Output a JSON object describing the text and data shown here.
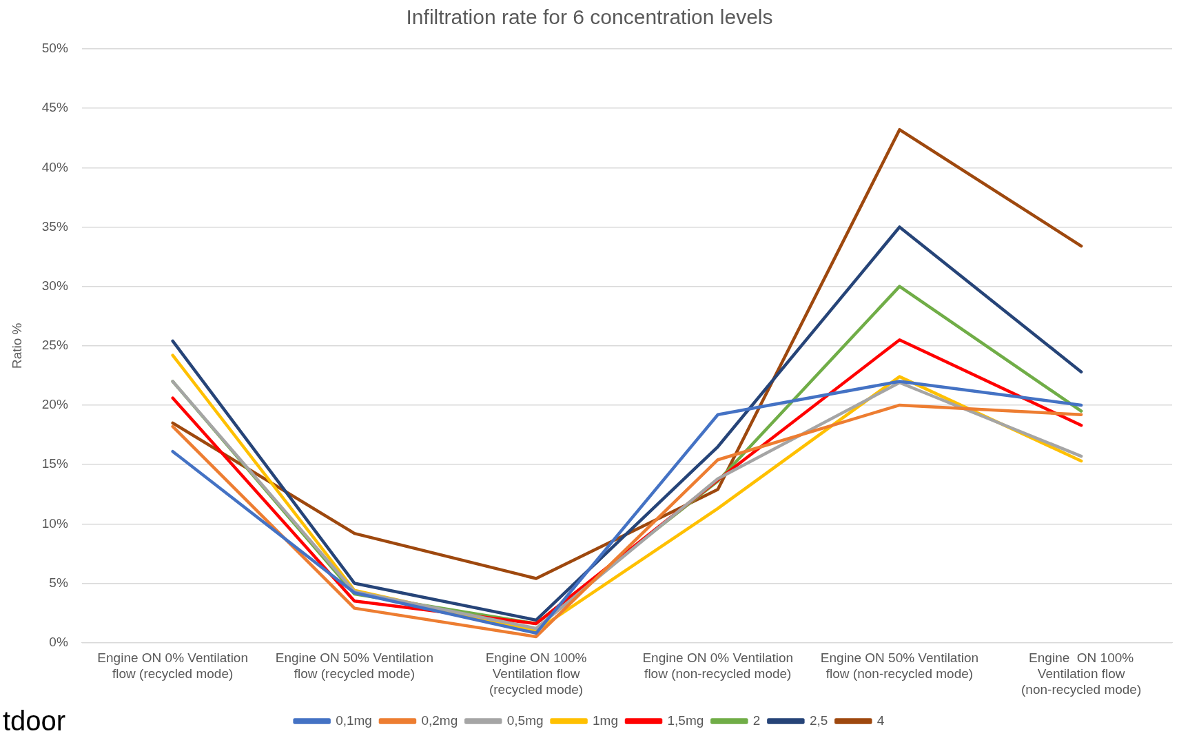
{
  "chart_data": {
    "type": "line",
    "title": "Infiltration rate for 6 concentration levels",
    "ylabel": "Ratio %",
    "categories": [
      "Engine ON 0% Ventilation flow (recycled mode)",
      "Engine ON 50% Ventilation flow (recycled mode)",
      "Engine ON 100% Ventilation flow (recycled mode)",
      "Engine ON 0% Ventilation flow (non-recycled mode)",
      "Engine ON 50% Ventilation flow (non-recycled mode)",
      "Engine  ON 100% Ventilation flow (non-recycled mode)"
    ],
    "series": [
      {
        "name": "0,1mg",
        "color": "#4472c4",
        "values": [
          16.1,
          4.2,
          0.8,
          19.2,
          22.0,
          20.0
        ]
      },
      {
        "name": "0,2mg",
        "color": "#ed7d31",
        "values": [
          18.2,
          2.9,
          0.5,
          15.4,
          20.0,
          19.2
        ]
      },
      {
        "name": "0,5mg",
        "color": "#a5a5a5",
        "values": [
          22.0,
          4.3,
          1.2,
          13.8,
          21.9,
          15.7
        ]
      },
      {
        "name": "1mg",
        "color": "#ffc000",
        "values": [
          24.2,
          4.4,
          1.0,
          11.3,
          22.4,
          15.3
        ]
      },
      {
        "name": "1,5mg",
        "color": "#ff0000",
        "values": [
          20.6,
          3.5,
          1.6,
          13.7,
          25.5,
          18.3
        ]
      },
      {
        "name": "2",
        "color": "#70ad47",
        "values": [
          22.0,
          4.1,
          1.6,
          13.6,
          30.0,
          19.5
        ]
      },
      {
        "name": "2,5",
        "color": "#264478",
        "values": [
          25.4,
          5.0,
          1.9,
          16.5,
          35.0,
          22.8
        ]
      },
      {
        "name": "4",
        "color": "#9e480e",
        "values": [
          18.5,
          9.2,
          5.4,
          12.9,
          43.2,
          33.4
        ]
      }
    ],
    "ylim": [
      0,
      50
    ],
    "yticks": [
      {
        "value": 0,
        "label": "0%"
      },
      {
        "value": 5,
        "label": "5%"
      },
      {
        "value": 10,
        "label": "10%"
      },
      {
        "value": 15,
        "label": "15%"
      },
      {
        "value": 20,
        "label": "20%"
      },
      {
        "value": 25,
        "label": "25%"
      },
      {
        "value": 30,
        "label": "30%"
      },
      {
        "value": 35,
        "label": "35%"
      },
      {
        "value": 40,
        "label": "40%"
      },
      {
        "value": 45,
        "label": "45%"
      },
      {
        "value": 50,
        "label": "50%"
      }
    ],
    "grid": "y",
    "legend": "bottom",
    "marker": "none",
    "line_style": "solid",
    "annotations": [
      "tdoor"
    ]
  }
}
